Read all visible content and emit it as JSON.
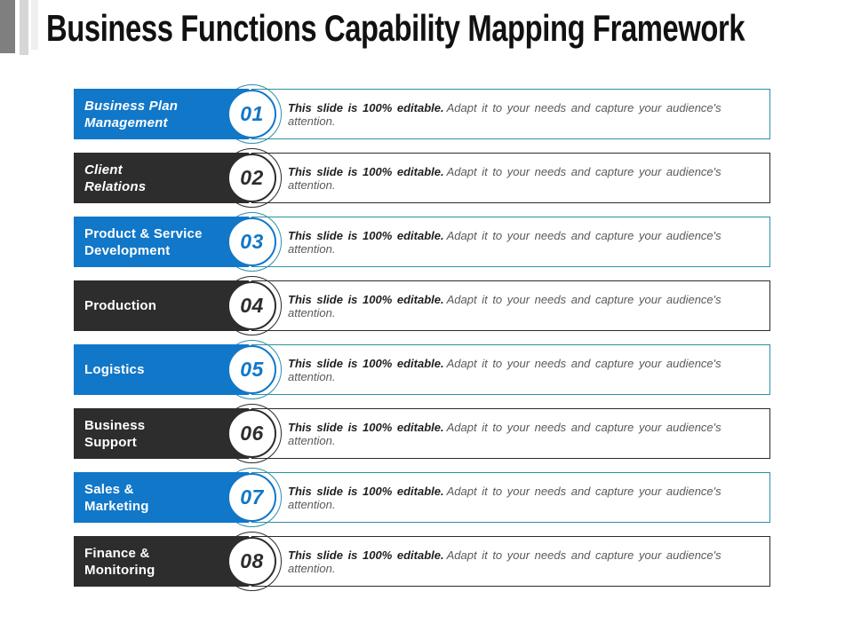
{
  "title": "Business Functions Capability Mapping Framework",
  "description": {
    "bold": "This slide is 100% editable.",
    "rest": "Adapt it to your needs and capture your audience's attention."
  },
  "colors": {
    "blue": "#1177c8",
    "dark": "#2d2d2d",
    "blue_row_border": "#2e8fa6",
    "dark_row_border": "#2b2b2b",
    "desc_bold_text": "#1f1f1f",
    "desc_text": "#5a5a5a",
    "title_text": "#111111",
    "accent_bar_dark": "#7f7f7f",
    "accent_bar_light": "#d6d6d6",
    "accent_bar_lighter": "#efefef"
  },
  "rows": [
    {
      "number": "01",
      "label": "Business Plan\nManagement",
      "theme": "blue",
      "label_italic": true
    },
    {
      "number": "02",
      "label": "Client\nRelations",
      "theme": "dark",
      "label_italic": true
    },
    {
      "number": "03",
      "label": "Product & Service\nDevelopment",
      "theme": "blue",
      "label_italic": false
    },
    {
      "number": "04",
      "label": "Production",
      "theme": "dark",
      "label_italic": false
    },
    {
      "number": "05",
      "label": "Logistics",
      "theme": "blue",
      "label_italic": false
    },
    {
      "number": "06",
      "label": "Business\nSupport",
      "theme": "dark",
      "label_italic": false
    },
    {
      "number": "07",
      "label": "Sales &\nMarketing",
      "theme": "blue",
      "label_italic": false
    },
    {
      "number": "08",
      "label": "Finance &\nMonitoring",
      "theme": "dark",
      "label_italic": false
    }
  ]
}
